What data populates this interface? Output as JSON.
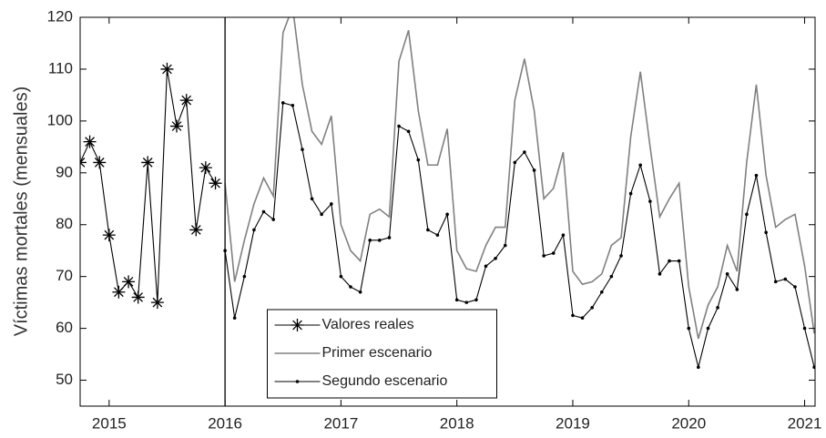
{
  "chart_data": {
    "type": "line",
    "ylabel": "Víctimas mortales (mensuales)",
    "xlim": [
      2014.75,
      2021.09
    ],
    "ylim": [
      45,
      120
    ],
    "xticks": [
      2015,
      2016,
      2017,
      2018,
      2019,
      2020,
      2021
    ],
    "yticks": [
      50,
      60,
      70,
      80,
      90,
      100,
      110,
      120
    ],
    "vline": 2016,
    "legend": "lower center",
    "series": [
      {
        "name": "Valores reales",
        "color": "#000000",
        "marker": "asterisk",
        "x": [
          2014.75,
          2014.833,
          2014.917,
          2015,
          2015.083,
          2015.167,
          2015.25,
          2015.333,
          2015.417,
          2015.5,
          2015.583,
          2015.667,
          2015.75,
          2015.833,
          2015.917
        ],
        "values": [
          92,
          96,
          92,
          78,
          67,
          69,
          66,
          92,
          65,
          110,
          99,
          104,
          79,
          91,
          88
        ]
      },
      {
        "name": "Primer escenario",
        "color": "#808080",
        "marker": "none",
        "x": [
          2016,
          2016.083,
          2016.167,
          2016.25,
          2016.333,
          2016.417,
          2016.5,
          2016.583,
          2016.667,
          2016.75,
          2016.833,
          2016.917,
          2017,
          2017.083,
          2017.167,
          2017.25,
          2017.333,
          2017.417,
          2017.5,
          2017.583,
          2017.667,
          2017.75,
          2017.833,
          2017.917,
          2018,
          2018.083,
          2018.167,
          2018.25,
          2018.333,
          2018.417,
          2018.5,
          2018.583,
          2018.667,
          2018.75,
          2018.833,
          2018.917,
          2019,
          2019.083,
          2019.167,
          2019.25,
          2019.333,
          2019.417,
          2019.5,
          2019.583,
          2019.667,
          2019.75,
          2019.833,
          2019.917,
          2020,
          2020.083,
          2020.167,
          2020.25,
          2020.333,
          2020.417,
          2020.5,
          2020.583,
          2020.667,
          2020.75,
          2020.833,
          2020.917,
          2021,
          2021.083
        ],
        "values": [
          88,
          69,
          77,
          84,
          89,
          85.5,
          117,
          122,
          107,
          98,
          95.5,
          101,
          80,
          75,
          73,
          82,
          83,
          81.5,
          111.5,
          117.5,
          102,
          91.5,
          91.5,
          98.5,
          75,
          71.5,
          71,
          76,
          79.5,
          79.5,
          104,
          112,
          102,
          85,
          87,
          94,
          71,
          68.5,
          69,
          70.5,
          76,
          77.5,
          97,
          109.5,
          95,
          81.5,
          85,
          88,
          68,
          58,
          64.5,
          68,
          76,
          71,
          92,
          107,
          89.5,
          79.5,
          81,
          82,
          72,
          59
        ]
      },
      {
        "name": "Segundo escenario",
        "color": "#000000",
        "marker": "dot",
        "x": [
          2016,
          2016.083,
          2016.167,
          2016.25,
          2016.333,
          2016.417,
          2016.5,
          2016.583,
          2016.667,
          2016.75,
          2016.833,
          2016.917,
          2017,
          2017.083,
          2017.167,
          2017.25,
          2017.333,
          2017.417,
          2017.5,
          2017.583,
          2017.667,
          2017.75,
          2017.833,
          2017.917,
          2018,
          2018.083,
          2018.167,
          2018.25,
          2018.333,
          2018.417,
          2018.5,
          2018.583,
          2018.667,
          2018.75,
          2018.833,
          2018.917,
          2019,
          2019.083,
          2019.167,
          2019.25,
          2019.333,
          2019.417,
          2019.5,
          2019.583,
          2019.667,
          2019.75,
          2019.833,
          2019.917,
          2020,
          2020.083,
          2020.167,
          2020.25,
          2020.333,
          2020.417,
          2020.5,
          2020.583,
          2020.667,
          2020.75,
          2020.833,
          2020.917,
          2021,
          2021.083
        ],
        "values": [
          75,
          62,
          70,
          79,
          82.5,
          81,
          103.5,
          103,
          94.5,
          85,
          82,
          84,
          70,
          68,
          67,
          77,
          77,
          77.5,
          99,
          98,
          92.5,
          79,
          78,
          82,
          65.5,
          65,
          65.5,
          72,
          73.5,
          76,
          92,
          94,
          90.5,
          74,
          74.5,
          78,
          62.5,
          62,
          64,
          67,
          70,
          74,
          86,
          91.5,
          84.5,
          70.5,
          73,
          73,
          60,
          52.5,
          60,
          64,
          70.5,
          67.5,
          82,
          89.5,
          78.5,
          69,
          69.5,
          68,
          60,
          52.5
        ]
      }
    ]
  }
}
